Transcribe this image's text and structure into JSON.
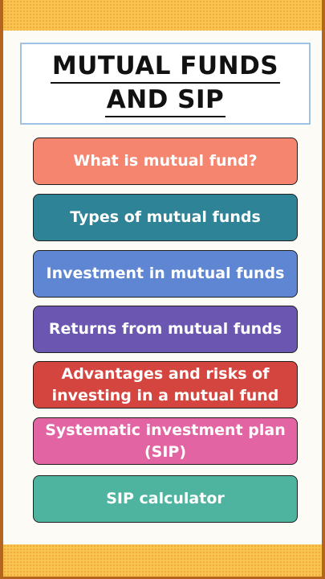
{
  "title": {
    "line1": "MUTUAL FUNDS",
    "line2": "AND SIP"
  },
  "menu": {
    "items": [
      {
        "label": "What is mutual fund?",
        "color": "#f5856f"
      },
      {
        "label": "Types of mutual funds",
        "color": "#2f8396"
      },
      {
        "label": "Investment in mutual funds",
        "color": "#5f86d2"
      },
      {
        "label": "Returns from mutual funds",
        "color": "#6b57b1"
      },
      {
        "label": "Advantages and risks of\ninvesting in a mutual fund",
        "color": "#d5453f"
      },
      {
        "label": "Systematic investment plan\n(SIP)",
        "color": "#e264a2"
      },
      {
        "label": "SIP calculator",
        "color": "#4fb49f"
      }
    ]
  },
  "colors": {
    "border": "#b5651d",
    "band": "#f8c552",
    "title_box_border": "#9ec3e2"
  }
}
